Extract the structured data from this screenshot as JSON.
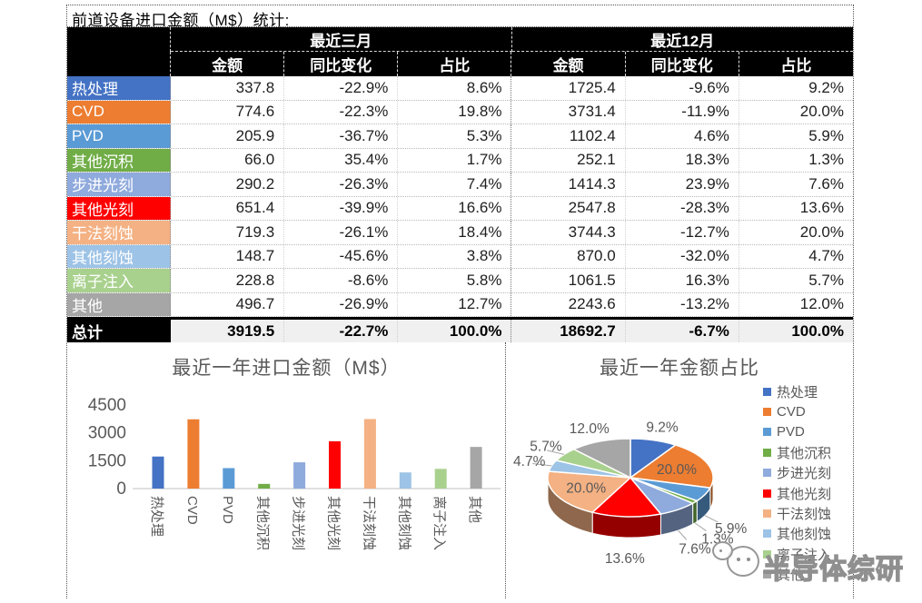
{
  "page_title": "前道设备进口金额（M$）统计:",
  "palette": [
    "#4472C4",
    "#ED7D31",
    "#5B9BD5",
    "#70AD47",
    "#8FAADC",
    "#FF0000",
    "#F4B183",
    "#9DC3E6",
    "#A9D18E",
    "#A6A6A6"
  ],
  "categories": [
    "热处理",
    "CVD",
    "PVD",
    "其他沉积",
    "步进光刻",
    "其他光刻",
    "干法刻蚀",
    "其他刻蚀",
    "离子注入",
    "其他"
  ],
  "table": {
    "group_headers": [
      "最近三月",
      "最近12月"
    ],
    "sub_headers": [
      "金额",
      "同比变化",
      "占比"
    ],
    "rows": [
      {
        "label": "热处理",
        "cells": [
          "337.8",
          "-22.9%",
          "8.6%",
          "1725.4",
          "-9.6%",
          "9.2%"
        ]
      },
      {
        "label": "CVD",
        "cells": [
          "774.6",
          "-22.3%",
          "19.8%",
          "3731.4",
          "-11.9%",
          "20.0%"
        ]
      },
      {
        "label": "PVD",
        "cells": [
          "205.9",
          "-36.7%",
          "5.3%",
          "1102.4",
          "4.6%",
          "5.9%"
        ]
      },
      {
        "label": "其他沉积",
        "cells": [
          "66.0",
          "35.4%",
          "1.7%",
          "252.1",
          "18.3%",
          "1.3%"
        ]
      },
      {
        "label": "步进光刻",
        "cells": [
          "290.2",
          "-26.3%",
          "7.4%",
          "1414.3",
          "23.9%",
          "7.6%"
        ]
      },
      {
        "label": "其他光刻",
        "cells": [
          "651.4",
          "-39.9%",
          "16.6%",
          "2547.8",
          "-28.3%",
          "13.6%"
        ]
      },
      {
        "label": "干法刻蚀",
        "cells": [
          "719.3",
          "-26.1%",
          "18.4%",
          "3744.3",
          "-12.7%",
          "20.0%"
        ]
      },
      {
        "label": "其他刻蚀",
        "cells": [
          "148.7",
          "-45.6%",
          "3.8%",
          "870.0",
          "-32.0%",
          "4.7%"
        ]
      },
      {
        "label": "离子注入",
        "cells": [
          "228.8",
          "-8.6%",
          "5.8%",
          "1061.5",
          "16.3%",
          "5.7%"
        ]
      },
      {
        "label": "其他",
        "cells": [
          "496.7",
          "-26.9%",
          "12.7%",
          "2243.6",
          "-13.2%",
          "12.0%"
        ]
      }
    ],
    "total_row": {
      "label": "总计",
      "cells": [
        "3919.5",
        "-22.7%",
        "100.0%",
        "18692.7",
        "-6.7%",
        "100.0%"
      ]
    }
  },
  "chart_data": [
    {
      "type": "bar",
      "title": "最近一年进口金额（M$）",
      "categories": [
        "热处理",
        "CVD",
        "PVD",
        "其他沉积",
        "步进光刻",
        "其他光刻",
        "干法刻蚀",
        "其他刻蚀",
        "离子注入",
        "其他"
      ],
      "values": [
        1725.4,
        3731.4,
        1102.4,
        252.1,
        1414.3,
        2547.8,
        3744.3,
        870.0,
        1061.5,
        2243.6
      ],
      "xlabel": "",
      "ylabel": "",
      "ylim": [
        0,
        4500
      ],
      "yticks": [
        0,
        1500,
        3000,
        4500
      ],
      "grid": false,
      "legend_position": "none"
    },
    {
      "type": "pie",
      "style": "3d",
      "title": "最近一年金额占比",
      "labels": [
        "热处理",
        "CVD",
        "PVD",
        "其他沉积",
        "步进光刻",
        "其他光刻",
        "干法刻蚀",
        "其他刻蚀",
        "离子注入",
        "其他"
      ],
      "values": [
        9.2,
        20.0,
        5.9,
        1.3,
        7.6,
        13.6,
        20.0,
        4.7,
        5.7,
        12.0
      ],
      "unit": "%",
      "legend_position": "right"
    }
  ],
  "watermark": {
    "text": "半导体综研",
    "logo": "wechat-official-account-logo"
  }
}
